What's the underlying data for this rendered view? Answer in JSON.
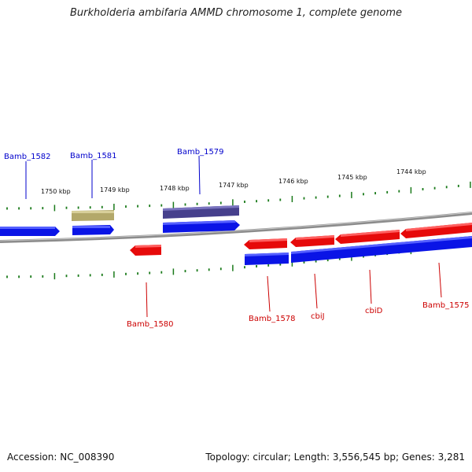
{
  "title": "Burkholderia ambifaria AMMD chromosome 1, complete genome",
  "footer": {
    "accession": "Accession: NC_008390",
    "summary": "Topology: circular; Length: 3,556,545 bp; Genes: 3,281"
  },
  "colors": {
    "forward_cds": "#0a14e6",
    "reverse_cds": "#e60a0a",
    "label_blue": "#0000cc",
    "label_red": "#cc0000",
    "tick": "#1a7a1a",
    "backbone": "#8c8c8c",
    "olive": "#b3a86a",
    "slate": "#46408c"
  },
  "ruler": {
    "labels": [
      "1750 kbp",
      "1749 kbp",
      "1748 kbp",
      "1747 kbp",
      "1746 kbp",
      "1745 kbp",
      "1744 kbp"
    ]
  },
  "genes": {
    "forward": [
      "Bamb_1582",
      "Bamb_1581",
      "Bamb_1579"
    ],
    "reverse": [
      "Bamb_1580",
      "Bamb_1578",
      "cbiJ",
      "cbiD",
      "Bamb_1575"
    ]
  }
}
